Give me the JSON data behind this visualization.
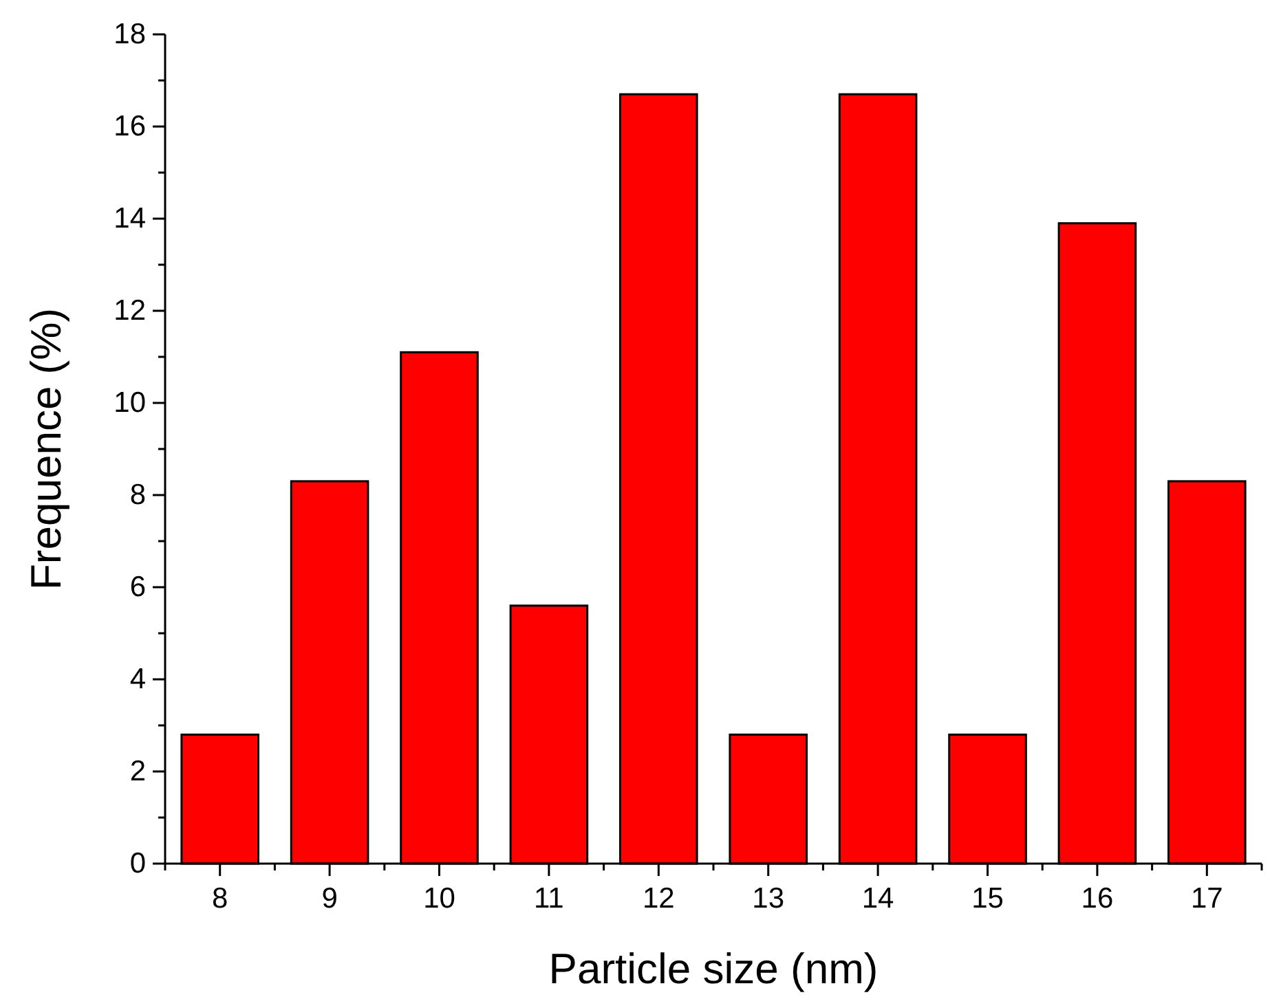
{
  "chart_data": {
    "type": "bar",
    "xlabel": "Particle size (nm)",
    "ylabel": "Frequence (%)",
    "x": [
      8,
      9,
      10,
      11,
      12,
      13,
      14,
      15,
      16,
      17
    ],
    "values": [
      2.8,
      8.3,
      11.1,
      5.6,
      16.7,
      2.8,
      16.7,
      2.8,
      13.9,
      8.3
    ],
    "color": "#ff0000",
    "xlim": [
      7.5,
      17.5
    ],
    "xticks": [
      {
        "value": 7.5,
        "label": null
      },
      8,
      {
        "value": 8.5,
        "label": null
      },
      9,
      {
        "value": 9.5,
        "label": null
      },
      10,
      {
        "value": 10.5,
        "label": null
      },
      11,
      {
        "value": 11.5,
        "label": null
      },
      12,
      {
        "value": 12.5,
        "label": null
      },
      13,
      {
        "value": 13.5,
        "label": null
      },
      14,
      {
        "value": 14.5,
        "label": null
      },
      15,
      {
        "value": 15.5,
        "label": null
      },
      16,
      {
        "value": 16.5,
        "label": null
      },
      17,
      {
        "value": 17.5,
        "label": null
      }
    ],
    "ylim": [
      0,
      18
    ],
    "yticks": [
      0,
      {
        "value": 1,
        "label": null
      },
      2,
      {
        "value": 3,
        "label": null
      },
      4,
      {
        "value": 5,
        "label": null
      },
      6,
      {
        "value": 7,
        "label": null
      },
      8,
      {
        "value": 9,
        "label": null
      },
      10,
      {
        "value": 11,
        "label": null
      },
      12,
      {
        "value": 13,
        "label": null
      },
      14,
      {
        "value": 15,
        "label": null
      },
      16,
      {
        "value": 17,
        "label": null
      },
      18
    ],
    "grid": false
  }
}
